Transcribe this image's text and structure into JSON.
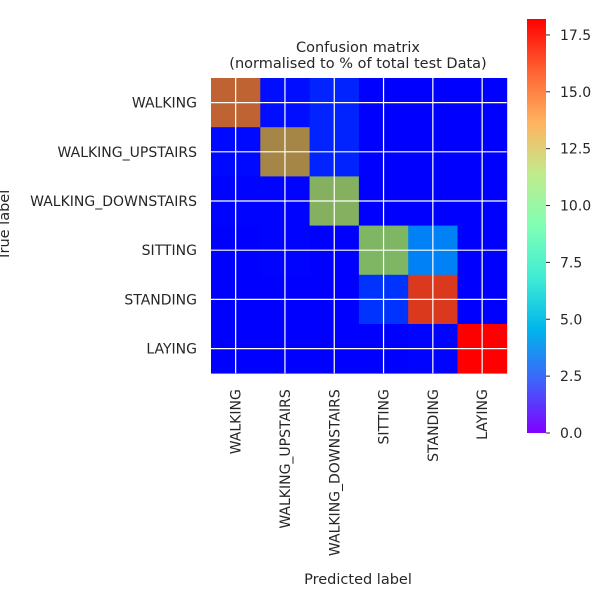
{
  "chart_data": {
    "type": "heatmap",
    "title": "Confusion matrix",
    "subtitle": "(normalised to % of total test Data)",
    "xlabel": "Predicted label",
    "ylabel": "True label",
    "row_labels": [
      "WALKING",
      "WALKING_UPSTAIRS",
      "WALKING_DOWNSTAIRS",
      "SITTING",
      "STANDING",
      "LAYING"
    ],
    "col_labels": [
      "WALKING",
      "WALKING_UPSTAIRS",
      "WALKING_DOWNSTAIRS",
      "SITTING",
      "STANDING",
      "LAYING"
    ],
    "values": [
      [
        15.9,
        0.3,
        0.8,
        0.0,
        0.0,
        0.0
      ],
      [
        0.2,
        15.0,
        0.8,
        0.0,
        0.0,
        0.0
      ],
      [
        0.1,
        0.1,
        13.8,
        0.0,
        0.0,
        0.0
      ],
      [
        0.0,
        0.1,
        0.0,
        13.6,
        3.1,
        0.0
      ],
      [
        0.0,
        0.0,
        0.0,
        1.2,
        16.9,
        0.0
      ],
      [
        0.0,
        0.0,
        0.0,
        0.0,
        0.1,
        18.2
      ]
    ],
    "colormap": "rainbow",
    "vmin": 0.0,
    "vmax": 18.2,
    "colorbar_ticks": [
      "0.0",
      "2.5",
      "5.0",
      "7.5",
      "10.0",
      "12.5",
      "15.0",
      "17.5"
    ],
    "grid": true,
    "grid_color": "#ffffff"
  }
}
